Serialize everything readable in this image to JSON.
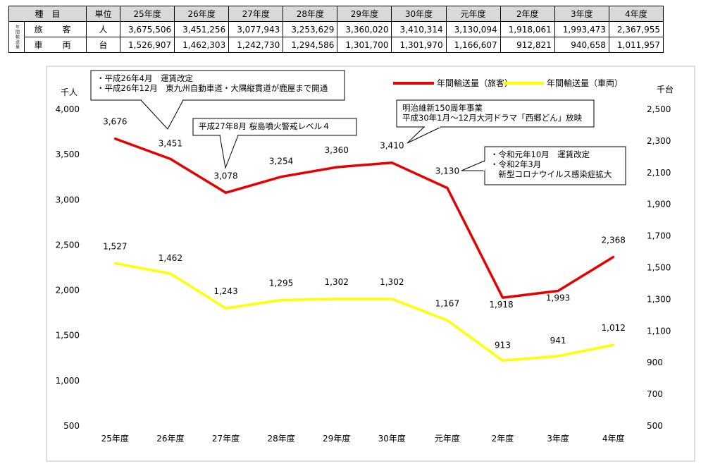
{
  "table": {
    "headers": [
      "種　目",
      "単位",
      "25年度",
      "26年度",
      "27年度",
      "28年度",
      "29年度",
      "30年度",
      "元年度",
      "2年度",
      "3年度",
      "4年度"
    ],
    "side_label": "年間輸送量",
    "rows": [
      {
        "name": "旅　客",
        "unit": "人",
        "values": [
          "3,675,506",
          "3,451,256",
          "3,077,943",
          "3,253,629",
          "3,360,020",
          "3,410,314",
          "3,130,094",
          "1,918,061",
          "1,993,473",
          "2,367,955"
        ]
      },
      {
        "name": "車　両",
        "unit": "台",
        "values": [
          "1,526,907",
          "1,462,303",
          "1,242,730",
          "1,294,586",
          "1,301,700",
          "1,301,970",
          "1,166,607",
          "912,821",
          "940,658",
          "1,011,957"
        ]
      }
    ]
  },
  "chart_data": {
    "type": "line",
    "categories": [
      "25年度",
      "26年度",
      "27年度",
      "28年度",
      "29年度",
      "30年度",
      "元年度",
      "2年度",
      "3年度",
      "4年度"
    ],
    "y_left": {
      "unit_label": "千人",
      "ylim": [
        500,
        4000
      ],
      "ticks": [
        500,
        1000,
        1500,
        2000,
        2500,
        3000,
        3500,
        4000
      ],
      "tick_labels": [
        "500",
        "1,000",
        "1,500",
        "2,000",
        "2,500",
        "3,000",
        "3,500",
        "4,000"
      ]
    },
    "y_right": {
      "unit_label": "千台",
      "ylim": [
        500,
        2500
      ],
      "ticks": [
        500,
        700,
        900,
        1100,
        1300,
        1500,
        1700,
        1900,
        2100,
        2300,
        2500
      ],
      "tick_labels": [
        "500",
        "700",
        "900",
        "1,100",
        "1,300",
        "1,500",
        "1,700",
        "1,900",
        "2,100",
        "2,300",
        "2,500"
      ]
    },
    "series": [
      {
        "name": "年間輸送量（旅客）",
        "color": "#e60000",
        "axis": "left",
        "values": [
          3676,
          3451,
          3078,
          3254,
          3360,
          3410,
          3130,
          1918,
          1993,
          2368
        ],
        "labels": [
          "3,676",
          "3,451",
          "3,078",
          "3,254",
          "3,360",
          "3,410",
          "3,130",
          "1,918",
          "1,993",
          "2,368"
        ]
      },
      {
        "name": "年間輸送量（車両）",
        "color": "#ffff00",
        "axis": "right",
        "values": [
          1527,
          1462,
          1243,
          1295,
          1302,
          1302,
          1167,
          913,
          941,
          1012
        ],
        "labels": [
          "1,527",
          "1,462",
          "1,243",
          "1,295",
          "1,302",
          "1,302",
          "1,167",
          "913",
          "941",
          "1,012"
        ]
      }
    ],
    "legend_position": "top-right",
    "grid": false,
    "annotations": [
      {
        "lines": [
          "・平成26年4月　運賃改定",
          "・平成26年12月　東九州自動車道・大隅縦貫道が鹿屋まで開通"
        ]
      },
      {
        "lines": [
          "平成27年8月 桜島噴火警戒レベル４"
        ]
      },
      {
        "lines": [
          "明治維新150周年事業",
          "平成30年1月～12月大河ドラマ「西郷どん」放映"
        ]
      },
      {
        "lines": [
          "・令和元年10月　運賃改定",
          "・令和2年3月",
          "　新型コロナウイルス感染症拡大"
        ]
      }
    ]
  }
}
